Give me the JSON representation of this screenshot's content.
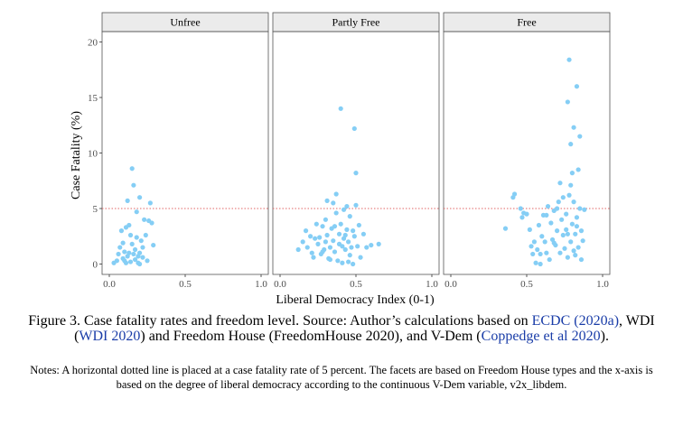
{
  "chart_data": {
    "type": "scatter",
    "ylabel": "Case Fatality (%)",
    "xlabel": "Liberal Democracy Index (0-1)",
    "xlim": [
      0,
      1
    ],
    "ylim": [
      0,
      20
    ],
    "x_ticks": [
      "0.0",
      "0.5",
      "1.0"
    ],
    "y_ticks": [
      "0",
      "5",
      "10",
      "15",
      "20"
    ],
    "reference_line": {
      "y": 5,
      "style": "dotted",
      "color": "#e06666"
    },
    "point_color": "#85cef5",
    "grid": false,
    "facets": [
      {
        "name": "Unfree",
        "points": [
          [
            0.03,
            0.1
          ],
          [
            0.06,
            0.9
          ],
          [
            0.07,
            1.5
          ],
          [
            0.08,
            3.0
          ],
          [
            0.09,
            0.5
          ],
          [
            0.1,
            1.1
          ],
          [
            0.1,
            0.3
          ],
          [
            0.11,
            3.3
          ],
          [
            0.12,
            5.7
          ],
          [
            0.12,
            0.7
          ],
          [
            0.13,
            3.5
          ],
          [
            0.13,
            1.0
          ],
          [
            0.14,
            2.6
          ],
          [
            0.14,
            0.2
          ],
          [
            0.15,
            8.6
          ],
          [
            0.15,
            1.8
          ],
          [
            0.16,
            0.9
          ],
          [
            0.16,
            7.1
          ],
          [
            0.17,
            1.3
          ],
          [
            0.17,
            0.4
          ],
          [
            0.18,
            4.7
          ],
          [
            0.18,
            2.4
          ],
          [
            0.19,
            0.7
          ],
          [
            0.19,
            0.1
          ],
          [
            0.2,
            1.0
          ],
          [
            0.2,
            6.0
          ],
          [
            0.21,
            2.1
          ],
          [
            0.22,
            1.5
          ],
          [
            0.22,
            0.6
          ],
          [
            0.23,
            4.0
          ],
          [
            0.24,
            2.6
          ],
          [
            0.25,
            0.3
          ],
          [
            0.26,
            3.9
          ],
          [
            0.27,
            5.5
          ],
          [
            0.28,
            3.7
          ],
          [
            0.29,
            1.7
          ],
          [
            0.05,
            0.3
          ],
          [
            0.09,
            1.9
          ],
          [
            0.11,
            0.1
          ],
          [
            0.2,
            0.0
          ]
        ]
      },
      {
        "name": "Partly Free",
        "points": [
          [
            0.12,
            1.3
          ],
          [
            0.15,
            2.0
          ],
          [
            0.17,
            3.0
          ],
          [
            0.18,
            1.5
          ],
          [
            0.2,
            2.5
          ],
          [
            0.21,
            1.0
          ],
          [
            0.22,
            0.6
          ],
          [
            0.23,
            2.3
          ],
          [
            0.24,
            3.6
          ],
          [
            0.25,
            1.8
          ],
          [
            0.26,
            2.4
          ],
          [
            0.27,
            0.9
          ],
          [
            0.28,
            3.4
          ],
          [
            0.29,
            1.3
          ],
          [
            0.3,
            2.0
          ],
          [
            0.3,
            4.0
          ],
          [
            0.31,
            2.6
          ],
          [
            0.31,
            5.7
          ],
          [
            0.32,
            0.5
          ],
          [
            0.33,
            1.5
          ],
          [
            0.34,
            3.2
          ],
          [
            0.35,
            5.5
          ],
          [
            0.35,
            2.1
          ],
          [
            0.36,
            1.1
          ],
          [
            0.37,
            6.3
          ],
          [
            0.37,
            4.6
          ],
          [
            0.38,
            0.3
          ],
          [
            0.39,
            2.7
          ],
          [
            0.39,
            1.8
          ],
          [
            0.4,
            14.0
          ],
          [
            0.4,
            3.6
          ],
          [
            0.41,
            0.1
          ],
          [
            0.42,
            4.9
          ],
          [
            0.42,
            2.3
          ],
          [
            0.43,
            1.3
          ],
          [
            0.44,
            5.2
          ],
          [
            0.44,
            3.1
          ],
          [
            0.45,
            0.2
          ],
          [
            0.45,
            2.0
          ],
          [
            0.46,
            4.3
          ],
          [
            0.47,
            1.5
          ],
          [
            0.48,
            3.0
          ],
          [
            0.48,
            0.0
          ],
          [
            0.49,
            12.2
          ],
          [
            0.49,
            2.5
          ],
          [
            0.5,
            8.2
          ],
          [
            0.5,
            5.3
          ],
          [
            0.51,
            1.6
          ],
          [
            0.52,
            3.5
          ],
          [
            0.53,
            0.6
          ],
          [
            0.55,
            2.7
          ],
          [
            0.57,
            1.5
          ],
          [
            0.6,
            1.7
          ],
          [
            0.65,
            1.8
          ],
          [
            0.36,
            3.4
          ],
          [
            0.43,
            2.6
          ],
          [
            0.46,
            0.8
          ],
          [
            0.41,
            1.6
          ],
          [
            0.33,
            0.4
          ],
          [
            0.28,
            1.1
          ]
        ]
      },
      {
        "name": "Free",
        "points": [
          [
            0.36,
            3.2
          ],
          [
            0.41,
            6.0
          ],
          [
            0.42,
            6.3
          ],
          [
            0.46,
            5.0
          ],
          [
            0.47,
            4.2
          ],
          [
            0.48,
            4.6
          ],
          [
            0.5,
            4.5
          ],
          [
            0.52,
            3.1
          ],
          [
            0.53,
            1.6
          ],
          [
            0.54,
            0.9
          ],
          [
            0.55,
            2.0
          ],
          [
            0.56,
            0.1
          ],
          [
            0.57,
            1.3
          ],
          [
            0.58,
            3.5
          ],
          [
            0.59,
            0.0
          ],
          [
            0.6,
            2.5
          ],
          [
            0.61,
            4.4
          ],
          [
            0.62,
            2.0
          ],
          [
            0.63,
            1.0
          ],
          [
            0.64,
            5.2
          ],
          [
            0.65,
            0.4
          ],
          [
            0.66,
            3.7
          ],
          [
            0.67,
            2.2
          ],
          [
            0.68,
            4.8
          ],
          [
            0.69,
            1.7
          ],
          [
            0.7,
            3.0
          ],
          [
            0.71,
            5.6
          ],
          [
            0.72,
            7.3
          ],
          [
            0.72,
            1.0
          ],
          [
            0.73,
            4.0
          ],
          [
            0.74,
            2.6
          ],
          [
            0.75,
            1.4
          ],
          [
            0.76,
            4.5
          ],
          [
            0.77,
            14.6
          ],
          [
            0.77,
            0.6
          ],
          [
            0.78,
            18.4
          ],
          [
            0.78,
            6.2
          ],
          [
            0.79,
            10.8
          ],
          [
            0.79,
            2.0
          ],
          [
            0.8,
            8.2
          ],
          [
            0.8,
            3.6
          ],
          [
            0.81,
            12.3
          ],
          [
            0.81,
            5.6
          ],
          [
            0.82,
            0.8
          ],
          [
            0.82,
            2.7
          ],
          [
            0.83,
            16.0
          ],
          [
            0.83,
            4.2
          ],
          [
            0.84,
            8.5
          ],
          [
            0.84,
            1.5
          ],
          [
            0.85,
            11.5
          ],
          [
            0.85,
            5.0
          ],
          [
            0.86,
            3.0
          ],
          [
            0.86,
            0.4
          ],
          [
            0.87,
            2.1
          ],
          [
            0.88,
            4.9
          ],
          [
            0.74,
            6.0
          ],
          [
            0.76,
            3.1
          ],
          [
            0.68,
            1.9
          ],
          [
            0.7,
            5.0
          ],
          [
            0.79,
            7.1
          ],
          [
            0.81,
            1.2
          ],
          [
            0.83,
            3.4
          ],
          [
            0.77,
            2.7
          ],
          [
            0.63,
            4.4
          ],
          [
            0.59,
            0.9
          ]
        ]
      }
    ]
  },
  "caption": {
    "lead": "Figure 3. Case fatality rates and freedom level. Source: Author’s calculations based on ",
    "ref1": "ECDC (2020a)",
    "mid1": ", WDI (",
    "ref2": "WDI 2020",
    "mid2": ") and Freedom House (FreedomHouse 2020), and V-Dem (",
    "ref3": "Coppedge et al 2020",
    "tail": ")."
  },
  "notes": "Notes: A horizontal dotted line is placed at a case fatality rate of 5 percent. The facets are based on Freedom House types and the x-axis is based on the degree of liberal democracy according to the continuous V-Dem variable, v2x_libdem."
}
